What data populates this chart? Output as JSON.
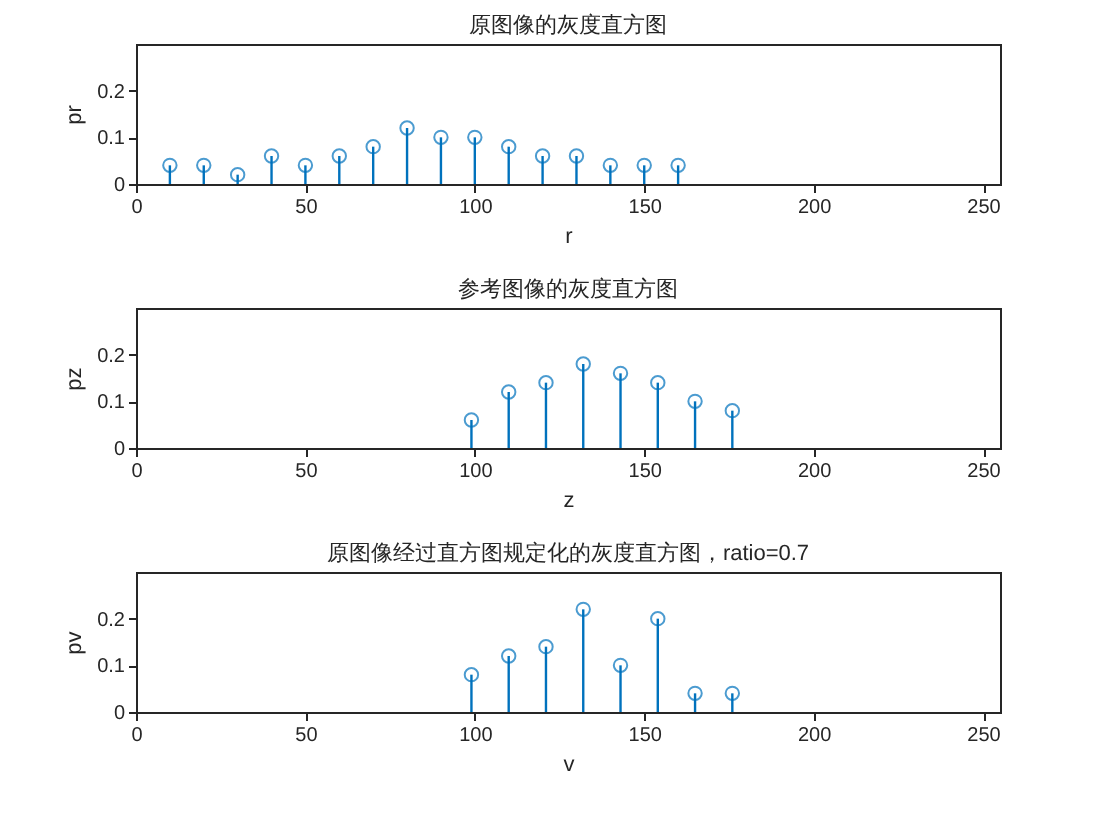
{
  "chart_data": [
    {
      "type": "lollipop",
      "title": "原图像的灰度直方图",
      "xlabel": "r",
      "ylabel": "pr",
      "x": [
        10,
        20,
        30,
        40,
        50,
        60,
        70,
        80,
        90,
        100,
        110,
        120,
        130,
        140,
        150,
        160
      ],
      "values": [
        0.04,
        0.04,
        0.02,
        0.06,
        0.04,
        0.06,
        0.08,
        0.12,
        0.1,
        0.1,
        0.08,
        0.06,
        0.06,
        0.04,
        0.04,
        0.04
      ],
      "color": "#0072bd",
      "xlim": [
        0,
        255
      ],
      "xticks": [
        0,
        50,
        100,
        150,
        200,
        250
      ],
      "ylim": [
        0,
        0.3
      ],
      "yticks": [
        0,
        0.1,
        0.2
      ],
      "marker": "circle",
      "grid": false
    },
    {
      "type": "lollipop",
      "title": "参考图像的灰度直方图",
      "xlabel": "z",
      "ylabel": "pz",
      "x": [
        99,
        110,
        121,
        132,
        143,
        154,
        165,
        176
      ],
      "values": [
        0.06,
        0.12,
        0.14,
        0.18,
        0.16,
        0.14,
        0.1,
        0.08
      ],
      "color": "#0072bd",
      "xlim": [
        0,
        255
      ],
      "xticks": [
        0,
        50,
        100,
        150,
        200,
        250
      ],
      "ylim": [
        0,
        0.3
      ],
      "yticks": [
        0,
        0.1,
        0.2
      ],
      "marker": "circle",
      "grid": false
    },
    {
      "type": "lollipop",
      "title": "原图像经过直方图规定化的灰度直方图，ratio=0.7",
      "xlabel": "v",
      "ylabel": "pv",
      "x": [
        99,
        110,
        121,
        132,
        143,
        154,
        165,
        176
      ],
      "values": [
        0.08,
        0.12,
        0.14,
        0.22,
        0.1,
        0.2,
        0.04,
        0.04
      ],
      "color": "#0072bd",
      "xlim": [
        0,
        255
      ],
      "xticks": [
        0,
        50,
        100,
        150,
        200,
        250
      ],
      "ylim": [
        0,
        0.3
      ],
      "yticks": [
        0,
        0.1,
        0.2
      ],
      "marker": "circle",
      "grid": false
    }
  ]
}
